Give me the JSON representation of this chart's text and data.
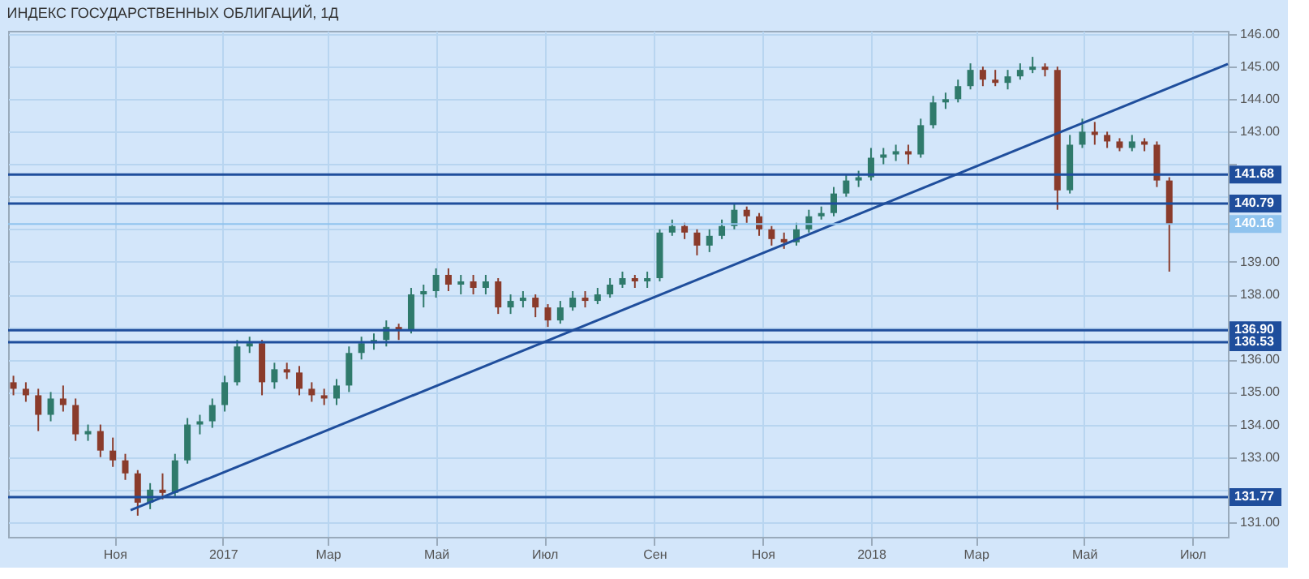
{
  "chart_data": {
    "type": "candlestick",
    "title": "ИНДЕКС ГОСУДАРСТВЕННЫХ ОБЛИГАЦИЙ, 1Д",
    "x": [
      "2016-09-05",
      "2016-09-12",
      "2016-09-19",
      "2016-09-26",
      "2016-10-03",
      "2016-10-10",
      "2016-10-17",
      "2016-10-24",
      "2016-10-31",
      "2016-11-07",
      "2016-11-14",
      "2016-11-21",
      "2016-11-28",
      "2016-12-05",
      "2016-12-12",
      "2016-12-19",
      "2016-12-26",
      "2017-01-02",
      "2017-01-09",
      "2017-01-16",
      "2017-01-23",
      "2017-01-30",
      "2017-02-06",
      "2017-02-13",
      "2017-02-20",
      "2017-02-27",
      "2017-03-06",
      "2017-03-13",
      "2017-03-20",
      "2017-03-27",
      "2017-04-03",
      "2017-04-10",
      "2017-04-17",
      "2017-04-24",
      "2017-05-01",
      "2017-05-08",
      "2017-05-15",
      "2017-05-22",
      "2017-05-29",
      "2017-06-05",
      "2017-06-12",
      "2017-06-19",
      "2017-06-26",
      "2017-07-03",
      "2017-07-10",
      "2017-07-17",
      "2017-07-24",
      "2017-07-31",
      "2017-08-07",
      "2017-08-14",
      "2017-08-21",
      "2017-08-28",
      "2017-09-04",
      "2017-09-11",
      "2017-09-18",
      "2017-09-25",
      "2017-10-02",
      "2017-10-09",
      "2017-10-16",
      "2017-10-23",
      "2017-10-30",
      "2017-11-06",
      "2017-11-13",
      "2017-11-20",
      "2017-11-27",
      "2017-12-04",
      "2017-12-11",
      "2017-12-18",
      "2017-12-25",
      "2018-01-01",
      "2018-01-08",
      "2018-01-15",
      "2018-01-22",
      "2018-01-29",
      "2018-02-05",
      "2018-02-12",
      "2018-02-19",
      "2018-02-26",
      "2018-03-05",
      "2018-03-12",
      "2018-03-19",
      "2018-03-26",
      "2018-04-02",
      "2018-04-09",
      "2018-04-16",
      "2018-04-23",
      "2018-04-30",
      "2018-05-07",
      "2018-05-14",
      "2018-05-21",
      "2018-05-28",
      "2018-06-04",
      "2018-06-11",
      "2018-06-18"
    ],
    "ohlc": [
      [
        135.3,
        135.5,
        134.9,
        135.1
      ],
      [
        135.1,
        135.3,
        134.7,
        134.9
      ],
      [
        134.9,
        135.1,
        133.8,
        134.3
      ],
      [
        134.3,
        135.0,
        134.1,
        134.8
      ],
      [
        134.8,
        135.2,
        134.4,
        134.6
      ],
      [
        134.6,
        134.8,
        133.5,
        133.7
      ],
      [
        133.7,
        134.0,
        133.5,
        133.8
      ],
      [
        133.8,
        134.0,
        133.0,
        133.2
      ],
      [
        133.2,
        133.6,
        132.7,
        132.9
      ],
      [
        132.9,
        133.1,
        132.3,
        132.5
      ],
      [
        132.5,
        132.6,
        131.2,
        131.6
      ],
      [
        131.6,
        132.2,
        131.4,
        132.0
      ],
      [
        132.0,
        132.5,
        131.7,
        131.9
      ],
      [
        131.9,
        133.1,
        131.8,
        132.9
      ],
      [
        132.9,
        134.2,
        132.8,
        134.0
      ],
      [
        134.0,
        134.3,
        133.7,
        134.1
      ],
      [
        134.1,
        134.8,
        133.9,
        134.6
      ],
      [
        134.6,
        135.5,
        134.4,
        135.3
      ],
      [
        135.3,
        136.6,
        135.2,
        136.4
      ],
      [
        136.4,
        136.7,
        136.2,
        136.5
      ],
      [
        136.5,
        136.6,
        134.9,
        135.3
      ],
      [
        135.3,
        135.9,
        135.1,
        135.7
      ],
      [
        135.7,
        135.9,
        135.4,
        135.6
      ],
      [
        135.6,
        135.8,
        134.9,
        135.1
      ],
      [
        135.1,
        135.3,
        134.7,
        134.9
      ],
      [
        134.9,
        135.1,
        134.6,
        134.8
      ],
      [
        134.8,
        135.4,
        134.6,
        135.2
      ],
      [
        135.2,
        136.4,
        135.0,
        136.2
      ],
      [
        136.2,
        136.7,
        136.0,
        136.5
      ],
      [
        136.5,
        136.8,
        136.3,
        136.6
      ],
      [
        136.6,
        137.2,
        136.4,
        137.0
      ],
      [
        137.0,
        137.1,
        136.6,
        136.9
      ],
      [
        136.9,
        138.2,
        136.8,
        138.0
      ],
      [
        138.0,
        138.3,
        137.6,
        138.1
      ],
      [
        138.1,
        138.8,
        137.9,
        138.6
      ],
      [
        138.6,
        138.8,
        138.1,
        138.3
      ],
      [
        138.3,
        138.6,
        138.0,
        138.4
      ],
      [
        138.4,
        138.6,
        138.0,
        138.2
      ],
      [
        138.2,
        138.6,
        138.0,
        138.4
      ],
      [
        138.4,
        138.5,
        137.4,
        137.6
      ],
      [
        137.6,
        138.0,
        137.4,
        137.8
      ],
      [
        137.8,
        138.1,
        137.6,
        137.9
      ],
      [
        137.9,
        138.0,
        137.3,
        137.6
      ],
      [
        137.6,
        137.7,
        137.0,
        137.2
      ],
      [
        137.2,
        137.8,
        137.1,
        137.6
      ],
      [
        137.6,
        138.1,
        137.5,
        137.9
      ],
      [
        137.9,
        138.1,
        137.6,
        137.8
      ],
      [
        137.8,
        138.2,
        137.7,
        138.0
      ],
      [
        138.0,
        138.5,
        137.9,
        138.3
      ],
      [
        138.3,
        138.7,
        138.2,
        138.5
      ],
      [
        138.5,
        138.6,
        138.2,
        138.4
      ],
      [
        138.4,
        138.7,
        138.2,
        138.5
      ],
      [
        138.5,
        140.0,
        138.4,
        139.9
      ],
      [
        139.9,
        140.3,
        139.8,
        140.1
      ],
      [
        140.1,
        140.2,
        139.7,
        139.9
      ],
      [
        139.9,
        140.0,
        139.2,
        139.5
      ],
      [
        139.5,
        140.0,
        139.3,
        139.8
      ],
      [
        139.8,
        140.3,
        139.7,
        140.1
      ],
      [
        140.1,
        140.8,
        140.0,
        140.6
      ],
      [
        140.6,
        140.7,
        140.2,
        140.4
      ],
      [
        140.4,
        140.5,
        139.8,
        140.0
      ],
      [
        140.0,
        140.1,
        139.5,
        139.7
      ],
      [
        139.7,
        139.9,
        139.4,
        139.6
      ],
      [
        139.6,
        140.2,
        139.5,
        140.0
      ],
      [
        140.0,
        140.6,
        139.9,
        140.4
      ],
      [
        140.4,
        140.7,
        140.3,
        140.5
      ],
      [
        140.5,
        141.3,
        140.4,
        141.1
      ],
      [
        141.1,
        141.7,
        141.0,
        141.5
      ],
      [
        141.5,
        141.8,
        141.3,
        141.6
      ],
      [
        141.6,
        142.5,
        141.5,
        142.2
      ],
      [
        142.2,
        142.5,
        142.0,
        142.3
      ],
      [
        142.3,
        142.6,
        142.1,
        142.4
      ],
      [
        142.4,
        142.6,
        142.0,
        142.3
      ],
      [
        142.3,
        143.4,
        142.2,
        143.2
      ],
      [
        143.2,
        144.1,
        143.1,
        143.9
      ],
      [
        143.9,
        144.2,
        143.7,
        144.0
      ],
      [
        144.0,
        144.6,
        143.9,
        144.4
      ],
      [
        144.4,
        145.1,
        144.3,
        144.9
      ],
      [
        144.9,
        145.0,
        144.4,
        144.6
      ],
      [
        144.6,
        144.9,
        144.4,
        144.5
      ],
      [
        144.5,
        144.9,
        144.3,
        144.7
      ],
      [
        144.7,
        145.1,
        144.6,
        144.9
      ],
      [
        144.9,
        145.3,
        144.8,
        145.0
      ],
      [
        145.0,
        145.1,
        144.7,
        144.9
      ],
      [
        144.9,
        145.0,
        140.6,
        141.2
      ],
      [
        141.2,
        142.9,
        141.1,
        142.6
      ],
      [
        142.6,
        143.4,
        142.5,
        143.0
      ],
      [
        143.0,
        143.3,
        142.6,
        142.9
      ],
      [
        142.9,
        143.0,
        142.5,
        142.7
      ],
      [
        142.7,
        142.8,
        142.4,
        142.5
      ],
      [
        142.5,
        142.9,
        142.4,
        142.7
      ],
      [
        142.7,
        142.8,
        142.4,
        142.6
      ],
      [
        142.6,
        142.7,
        141.3,
        141.5
      ],
      [
        141.5,
        141.6,
        138.7,
        140.16
      ]
    ],
    "colors": [
      "#8a3b2b",
      "#8a3b2b",
      "#8a3b2b",
      "#2f7a6b",
      "#8a3b2b",
      "#8a3b2b",
      "#2f7a6b",
      "#8a3b2b",
      "#8a3b2b",
      "#8a3b2b",
      "#8a3b2b",
      "#2f7a6b",
      "#8a3b2b",
      "#2f7a6b",
      "#2f7a6b",
      "#2f7a6b",
      "#2f7a6b",
      "#2f7a6b",
      "#2f7a6b",
      "#2f7a6b",
      "#8a3b2b",
      "#2f7a6b",
      "#8a3b2b",
      "#8a3b2b",
      "#8a3b2b",
      "#8a3b2b",
      "#2f7a6b",
      "#2f7a6b",
      "#2f7a6b",
      "#2f7a6b",
      "#2f7a6b",
      "#8a3b2b",
      "#2f7a6b",
      "#2f7a6b",
      "#2f7a6b",
      "#8a3b2b",
      "#2f7a6b",
      "#8a3b2b",
      "#2f7a6b",
      "#8a3b2b",
      "#2f7a6b",
      "#2f7a6b",
      "#8a3b2b",
      "#8a3b2b",
      "#2f7a6b",
      "#2f7a6b",
      "#8a3b2b",
      "#2f7a6b",
      "#2f7a6b",
      "#2f7a6b",
      "#8a3b2b",
      "#2f7a6b",
      "#2f7a6b",
      "#2f7a6b",
      "#8a3b2b",
      "#8a3b2b",
      "#2f7a6b",
      "#2f7a6b",
      "#2f7a6b",
      "#8a3b2b",
      "#8a3b2b",
      "#8a3b2b",
      "#8a3b2b",
      "#2f7a6b",
      "#2f7a6b",
      "#2f7a6b",
      "#2f7a6b",
      "#2f7a6b",
      "#2f7a6b",
      "#2f7a6b",
      "#2f7a6b",
      "#2f7a6b",
      "#8a3b2b",
      "#2f7a6b",
      "#2f7a6b",
      "#2f7a6b",
      "#2f7a6b",
      "#2f7a6b",
      "#8a3b2b",
      "#8a3b2b",
      "#2f7a6b",
      "#2f7a6b",
      "#2f7a6b",
      "#8a3b2b",
      "#8a3b2b",
      "#2f7a6b",
      "#2f7a6b",
      "#8a3b2b",
      "#8a3b2b",
      "#8a3b2b",
      "#2f7a6b",
      "#8a3b2b",
      "#8a3b2b",
      "#8a3b2b"
    ],
    "series": [
      {
        "type": "line",
        "color": "#1f4e9c",
        "x": [
          "2016-11-10",
          "2018-07-21"
        ],
        "values": [
          131.37,
          145.08
        ]
      }
    ],
    "ref_lines": [
      {
        "axis": "y",
        "value": 141.68,
        "label": "141.68",
        "color": "#1f4e9c"
      },
      {
        "axis": "y",
        "value": 140.79,
        "label": "140.79",
        "color": "#1f4e9c"
      },
      {
        "axis": "y",
        "value": 140.16,
        "label": "140.16",
        "color": "#8fc3ee"
      },
      {
        "axis": "y",
        "value": 136.9,
        "label": "136.90",
        "color": "#1f4e9c"
      },
      {
        "axis": "y",
        "value": 136.53,
        "label": "136.53",
        "color": "#1f4e9c"
      },
      {
        "axis": "y",
        "value": 131.77,
        "label": "131.77",
        "color": "#1f4e9c"
      }
    ],
    "xlim": [
      "2016-09-02",
      "2018-07-21"
    ],
    "xticks": [
      {
        "value": "2016-11-01",
        "label": "Ноя"
      },
      {
        "value": "2017-01-01",
        "label": "2017"
      },
      {
        "value": "2017-03-01",
        "label": "Мар"
      },
      {
        "value": "2017-05-01",
        "label": "Май"
      },
      {
        "value": "2017-07-01",
        "label": "Июл"
      },
      {
        "value": "2017-09-01",
        "label": "Сен"
      },
      {
        "value": "2017-11-01",
        "label": "Ноя"
      },
      {
        "value": "2018-01-01",
        "label": "2018"
      },
      {
        "value": "2018-03-01",
        "label": "Мар"
      },
      {
        "value": "2018-05-01",
        "label": "Май"
      },
      {
        "value": "2018-07-01",
        "label": "Июл"
      }
    ],
    "ylim": [
      130.55,
      146.1
    ],
    "yticks": [
      {
        "value": 131,
        "label": "131.00"
      },
      {
        "value": 132,
        "label": null
      },
      {
        "value": 133,
        "label": "133.00"
      },
      {
        "value": 134,
        "label": "134.00"
      },
      {
        "value": 135,
        "label": "135.00"
      },
      {
        "value": 136,
        "label": "136.00"
      },
      {
        "value": 137,
        "label": null
      },
      {
        "value": 138,
        "label": "138.00"
      },
      {
        "value": 139,
        "label": "139.00"
      },
      {
        "value": 140,
        "label": null
      },
      {
        "value": 141,
        "label": null
      },
      {
        "value": 142,
        "label": null
      },
      {
        "value": 143,
        "label": "143.00"
      },
      {
        "value": 144,
        "label": "144.00"
      },
      {
        "value": 145,
        "label": "145.00"
      },
      {
        "value": 146,
        "label": "146.00"
      }
    ],
    "grid": true
  }
}
